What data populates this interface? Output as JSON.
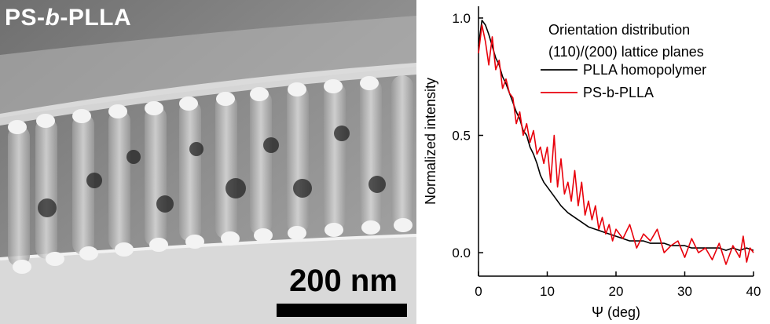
{
  "tem_image": {
    "title_prefix": "PS-",
    "title_italic": "b",
    "title_suffix": "-PLLA",
    "scale_bar_label": "200 nm"
  },
  "chart_data": {
    "type": "line",
    "xlabel": "Ψ (deg)",
    "ylabel": "Normalized intensity",
    "xlim": [
      0,
      40
    ],
    "ylim": [
      -0.1,
      1.05
    ],
    "xticks": [
      "0",
      "10",
      "20",
      "30",
      "40"
    ],
    "yticks": [
      "0.0",
      "0.5",
      "1.0"
    ],
    "legend_title_line1": "Orientation distribution",
    "legend_title_line2": "(110)/(200) lattice planes",
    "legend_placement": "top-right",
    "grid": false,
    "series": [
      {
        "name": "PLLA homopolymer",
        "color": "#000000",
        "x": [
          0,
          0.5,
          1,
          1.5,
          2,
          2.5,
          3,
          3.5,
          4,
          4.5,
          5,
          5.5,
          6,
          6.5,
          7,
          7.5,
          8,
          8.5,
          9,
          9.5,
          10,
          11,
          12,
          13,
          14,
          15,
          16,
          17,
          18,
          19,
          20,
          21,
          22,
          23,
          24,
          25,
          26,
          27,
          28,
          29,
          30,
          31,
          32,
          33,
          34,
          35,
          36,
          37,
          38,
          39,
          40
        ],
        "y": [
          0.88,
          0.99,
          0.97,
          0.93,
          0.88,
          0.83,
          0.8,
          0.75,
          0.72,
          0.68,
          0.64,
          0.6,
          0.57,
          0.52,
          0.5,
          0.45,
          0.42,
          0.38,
          0.33,
          0.3,
          0.28,
          0.24,
          0.2,
          0.17,
          0.15,
          0.13,
          0.11,
          0.1,
          0.09,
          0.08,
          0.07,
          0.06,
          0.05,
          0.05,
          0.05,
          0.04,
          0.04,
          0.04,
          0.03,
          0.03,
          0.03,
          0.02,
          0.02,
          0.02,
          0.02,
          0.02,
          0.01,
          0.02,
          0.01,
          0.02,
          0.01
        ]
      },
      {
        "name": "PS-b-PLLA",
        "color": "#e8000b",
        "x": [
          0,
          0.5,
          1,
          1.5,
          2,
          2.5,
          3,
          3.5,
          4,
          4.5,
          5,
          5.5,
          6,
          6.5,
          7,
          7.5,
          8,
          8.5,
          9,
          9.5,
          10,
          10.5,
          11,
          11.5,
          12,
          12.5,
          13,
          13.5,
          14,
          14.5,
          15,
          15.5,
          16,
          16.5,
          17,
          17.5,
          18,
          18.5,
          19,
          19.5,
          20,
          21,
          22,
          23,
          24,
          25,
          26,
          27,
          28,
          29,
          30,
          31,
          32,
          33,
          34,
          35,
          36,
          37,
          38,
          38.5,
          39,
          39.5,
          40
        ],
        "y": [
          0.85,
          0.97,
          0.9,
          0.8,
          0.92,
          0.78,
          0.82,
          0.7,
          0.74,
          0.68,
          0.66,
          0.55,
          0.6,
          0.5,
          0.55,
          0.47,
          0.52,
          0.42,
          0.45,
          0.38,
          0.45,
          0.3,
          0.5,
          0.28,
          0.4,
          0.25,
          0.3,
          0.22,
          0.35,
          0.2,
          0.3,
          0.16,
          0.22,
          0.14,
          0.2,
          0.1,
          0.15,
          0.08,
          0.12,
          0.05,
          0.1,
          0.06,
          0.12,
          0.02,
          0.08,
          0.05,
          0.1,
          0.0,
          0.03,
          0.05,
          -0.02,
          0.06,
          0.0,
          0.02,
          -0.03,
          0.04,
          -0.05,
          0.03,
          -0.02,
          0.07,
          -0.04,
          0.02,
          0.0
        ]
      }
    ]
  }
}
